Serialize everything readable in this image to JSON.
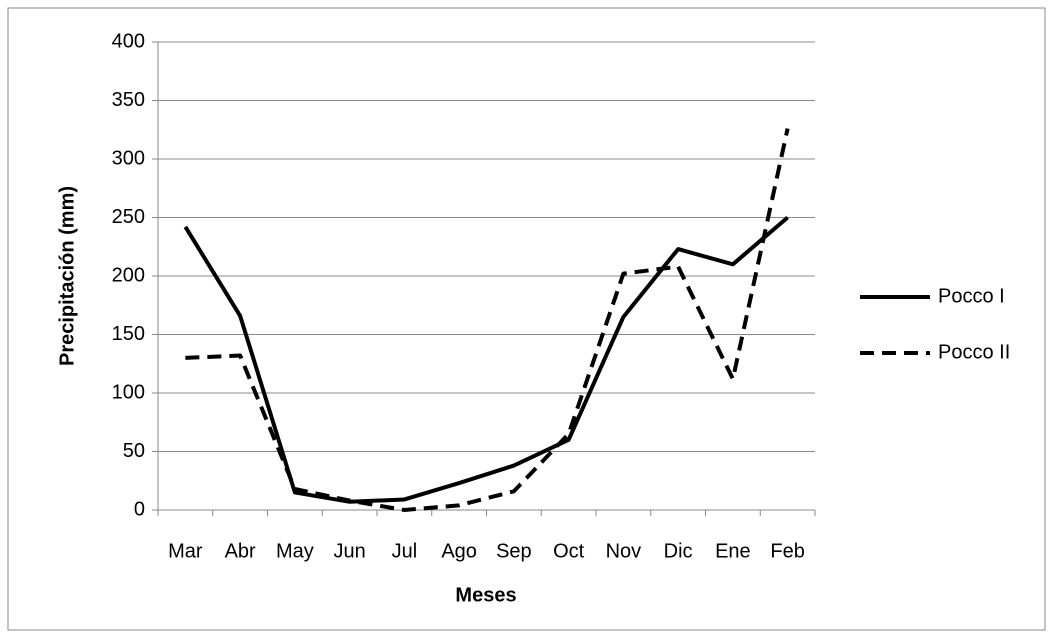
{
  "chart_data": {
    "type": "line",
    "y_label": "Precipitación (mm)",
    "x_label": "Meses",
    "categories": [
      "Mar",
      "Abr",
      "May",
      "Jun",
      "Jul",
      "Ago",
      "Sep",
      "Oct",
      "Nov",
      "Dic",
      "Ene",
      "Feb"
    ],
    "series": [
      {
        "name": "Pocco I",
        "color": "#000000",
        "line_style": "solid",
        "values": [
          242,
          166,
          15,
          7,
          9,
          23,
          38,
          60,
          165,
          223,
          210,
          250
        ]
      },
      {
        "name": "Pocco II",
        "color": "#000000",
        "line_style": "dashed",
        "values": [
          130,
          132,
          18,
          8,
          0,
          4,
          16,
          65,
          202,
          208,
          112,
          326
        ]
      }
    ],
    "ylim": [
      0,
      400
    ],
    "yticks": [
      0,
      50,
      100,
      150,
      200,
      250,
      300,
      350,
      400
    ],
    "grid": true,
    "legend": "right"
  }
}
